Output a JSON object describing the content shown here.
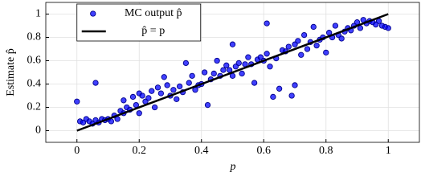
{
  "chart_data": {
    "type": "scatter",
    "xlabel": "p",
    "ylabel": "Estimate p̂",
    "xlim": [
      -0.1,
      1.1
    ],
    "ylim": [
      -0.1,
      1.1
    ],
    "xticks": [
      0,
      0.2,
      0.4,
      0.6,
      0.8,
      1
    ],
    "yticks": [
      0,
      0.2,
      0.4,
      0.6,
      0.8,
      1
    ],
    "grid": true,
    "legend": "upper left",
    "series": [
      {
        "name": "MC output p̂",
        "color": "#0000ff",
        "type": "scatter",
        "x": [
          0,
          0.01,
          0.02,
          0.03,
          0.04,
          0.05,
          0.06,
          0.06,
          0.07,
          0.08,
          0.09,
          0.1,
          0.11,
          0.12,
          0.13,
          0.14,
          0.15,
          0.15,
          0.16,
          0.17,
          0.18,
          0.19,
          0.2,
          0.2,
          0.21,
          0.22,
          0.23,
          0.24,
          0.25,
          0.26,
          0.27,
          0.28,
          0.29,
          0.3,
          0.31,
          0.32,
          0.33,
          0.34,
          0.35,
          0.36,
          0.37,
          0.38,
          0.39,
          0.4,
          0.41,
          0.42,
          0.43,
          0.44,
          0.45,
          0.46,
          0.47,
          0.48,
          0.49,
          0.5,
          0.5,
          0.51,
          0.52,
          0.53,
          0.54,
          0.55,
          0.56,
          0.57,
          0.58,
          0.59,
          0.6,
          0.61,
          0.61,
          0.62,
          0.63,
          0.64,
          0.65,
          0.66,
          0.67,
          0.68,
          0.69,
          0.7,
          0.7,
          0.71,
          0.72,
          0.73,
          0.74,
          0.75,
          0.76,
          0.77,
          0.78,
          0.79,
          0.8,
          0.81,
          0.82,
          0.83,
          0.84,
          0.85,
          0.86,
          0.87,
          0.88,
          0.89,
          0.9,
          0.91,
          0.92,
          0.93,
          0.94,
          0.95,
          0.96,
          0.97,
          0.98,
          0.99,
          1
        ],
        "values": [
          0.25,
          0.08,
          0.07,
          0.1,
          0.08,
          0.06,
          0.41,
          0.09,
          0.07,
          0.1,
          0.09,
          0.1,
          0.08,
          0.13,
          0.1,
          0.17,
          0.26,
          0.15,
          0.2,
          0.18,
          0.29,
          0.22,
          0.32,
          0.15,
          0.3,
          0.25,
          0.28,
          0.34,
          0.2,
          0.37,
          0.32,
          0.46,
          0.39,
          0.3,
          0.35,
          0.27,
          0.38,
          0.33,
          0.58,
          0.41,
          0.47,
          0.35,
          0.39,
          0.4,
          0.5,
          0.22,
          0.44,
          0.49,
          0.6,
          0.47,
          0.52,
          0.56,
          0.52,
          0.74,
          0.47,
          0.55,
          0.58,
          0.49,
          0.57,
          0.63,
          0.57,
          0.41,
          0.61,
          0.63,
          0.6,
          0.92,
          0.66,
          0.55,
          0.29,
          0.62,
          0.36,
          0.69,
          0.68,
          0.72,
          0.3,
          0.74,
          0.39,
          0.77,
          0.65,
          0.82,
          0.7,
          0.76,
          0.89,
          0.73,
          0.78,
          0.8,
          0.67,
          0.84,
          0.8,
          0.9,
          0.82,
          0.79,
          0.85,
          0.88,
          0.86,
          0.9,
          0.93,
          0.88,
          0.95,
          0.92,
          0.94,
          0.93,
          0.91,
          0.94,
          0.9,
          0.89,
          0.88
        ]
      },
      {
        "name": "p̂ = p",
        "color": "#000000",
        "type": "line",
        "x": [
          0,
          1
        ],
        "values": [
          0,
          1
        ]
      }
    ]
  }
}
